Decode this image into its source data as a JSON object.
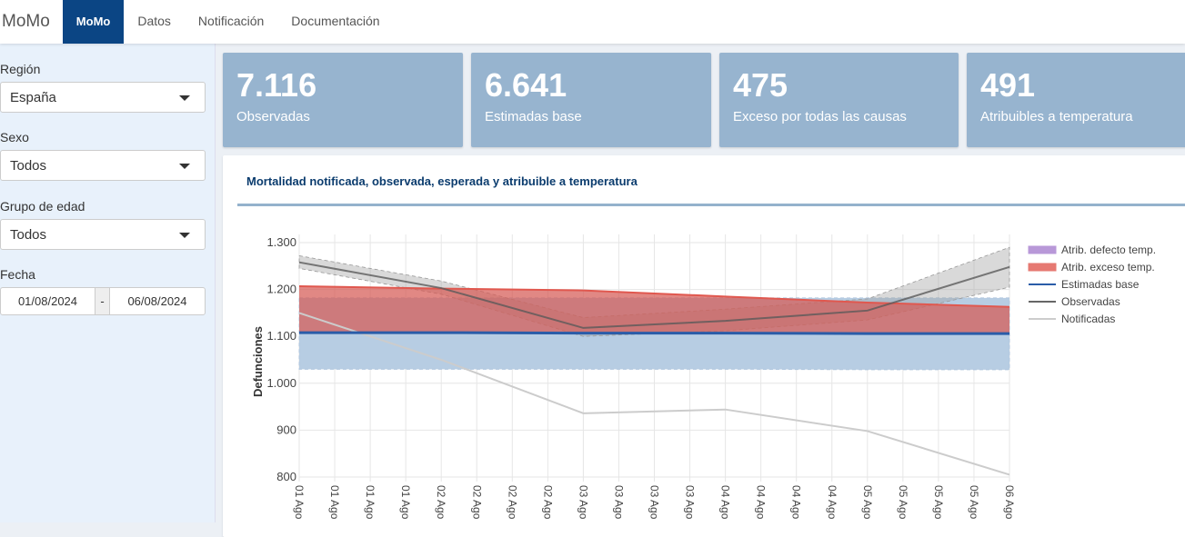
{
  "nav": {
    "brand": "MoMo",
    "tabs": [
      "MoMo",
      "Datos",
      "Notificación",
      "Documentación"
    ]
  },
  "sidebar": {
    "region_label": "Región",
    "region_value": "España",
    "sexo_label": "Sexo",
    "sexo_value": "Todos",
    "edad_label": "Grupo de edad",
    "edad_value": "Todos",
    "fecha_label": "Fecha",
    "fecha_from": "01/08/2024",
    "fecha_sep": "-",
    "fecha_to": "06/08/2024"
  },
  "stats": [
    {
      "value": "7.116",
      "label": "Observadas"
    },
    {
      "value": "6.641",
      "label": "Estimadas base"
    },
    {
      "value": "475",
      "label": "Exceso por todas las causas"
    },
    {
      "value": "491",
      "label": "Atribuibles a temperatura"
    }
  ],
  "chart_data": {
    "type": "line",
    "title": "Mortalidad notificada, observada, esperada y atribuible a temperatura",
    "ylabel": "Defunciones",
    "xlabel": "",
    "ylim": [
      790,
      1310
    ],
    "yticks": [
      "800",
      "900",
      "1.000",
      "1.100",
      "1.200",
      "1.300"
    ],
    "ytick_values": [
      800,
      900,
      1000,
      1100,
      1200,
      1300
    ],
    "xticks": [
      "01 Ago",
      "01 Ago",
      "01 Ago",
      "01 Ago",
      "02 Ago",
      "02 Ago",
      "02 Ago",
      "02 Ago",
      "03 Ago",
      "03 Ago",
      "03 Ago",
      "03 Ago",
      "04 Ago",
      "04 Ago",
      "04 Ago",
      "04 Ago",
      "05 Ago",
      "05 Ago",
      "05 Ago",
      "05 Ago",
      "06 Ago"
    ],
    "x_days": [
      0,
      1,
      2,
      3,
      4,
      5
    ],
    "series": [
      {
        "name": "Atrib. defecto temp.",
        "color": "#a77fcf",
        "values": []
      },
      {
        "name": "Atrib. exceso temp.",
        "color": "#e0584f",
        "values": [
          1207,
          1202,
          1198,
          1185,
          1172,
          1163
        ]
      },
      {
        "name": "Estimadas base",
        "color": "#2a5ca8",
        "values": [
          1108,
          1108,
          1107,
          1107,
          1106,
          1106
        ],
        "lower": [
          1030,
          1030,
          1030,
          1030,
          1029,
          1029
        ],
        "upper": [
          1182,
          1182,
          1182,
          1182,
          1182,
          1182
        ]
      },
      {
        "name": "Observadas",
        "color": "#666666",
        "values": [
          1258,
          1203,
          1118,
          1133,
          1155,
          1248
        ],
        "lower": [
          1245,
          1190,
          1100,
          1112,
          1135,
          1205
        ],
        "upper": [
          1272,
          1218,
          1140,
          1158,
          1180,
          1290
        ]
      },
      {
        "name": "Notificadas",
        "color": "#cccccc",
        "values": [
          1150,
          1050,
          936,
          944,
          898,
          805
        ]
      }
    ],
    "legend": "right"
  }
}
